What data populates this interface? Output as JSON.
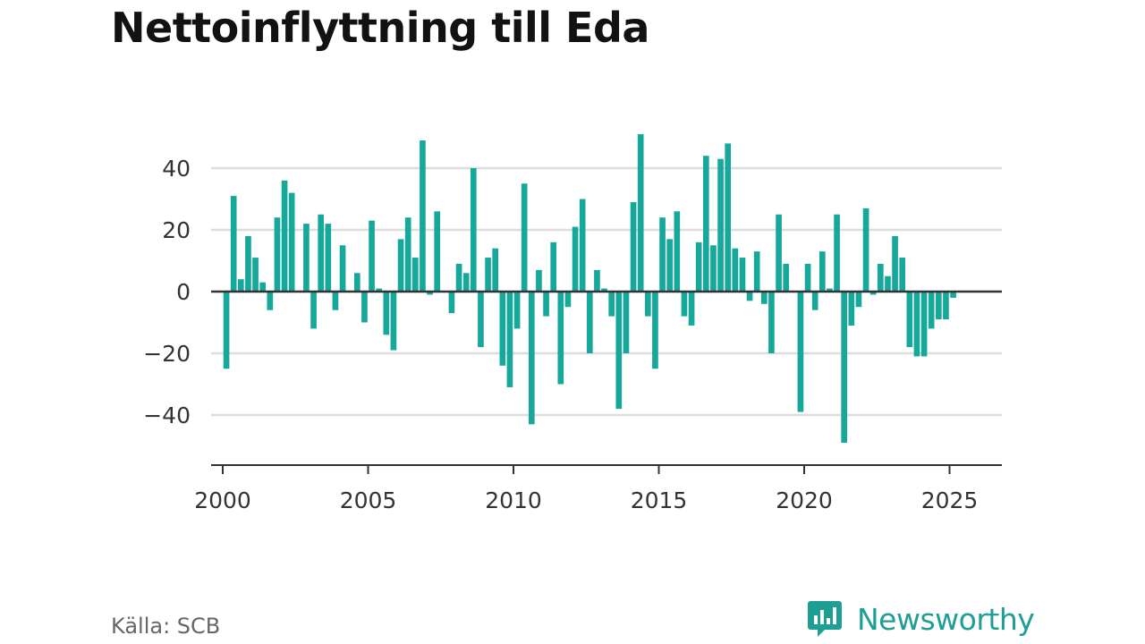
{
  "title": "Nettoinflyttning till Eda",
  "source": "Källa: SCB",
  "brand": {
    "name": "Newsworthy",
    "icon": "bar-chart-speech-bubble-icon",
    "color": "#1f9e93"
  },
  "colors": {
    "bar": "#15a89b",
    "grid": "#dddddd",
    "zero_line": "#333333",
    "axis": "#333333",
    "tick_text": "#333333"
  },
  "chart_data": {
    "type": "bar",
    "title": "Nettoinflyttning till Eda",
    "xlabel": "",
    "ylabel": "",
    "grid": true,
    "legend": "none",
    "frequency": "quarterly",
    "xlim": [
      1999.6,
      2026.8
    ],
    "ylim": [
      -55,
      55
    ],
    "x_ticks": [
      2000,
      2005,
      2010,
      2015,
      2020,
      2025
    ],
    "y_ticks": [
      40,
      20,
      0,
      -20,
      -40
    ],
    "tick_labels": {
      "x": [
        "2000",
        "2005",
        "2010",
        "2015",
        "2020",
        "2025"
      ],
      "y": [
        "40",
        "20",
        "0",
        "−20",
        "−40"
      ]
    },
    "start_quarter": "2000-Q1",
    "values": [
      -25,
      31,
      4,
      18,
      11,
      3,
      -6,
      24,
      36,
      32,
      0,
      22,
      -12,
      25,
      22,
      -6,
      15,
      0,
      6,
      -10,
      23,
      1,
      -14,
      -19,
      17,
      24,
      11,
      49,
      -1,
      26,
      0,
      -7,
      9,
      6,
      40,
      -18,
      11,
      14,
      -24,
      -31,
      -12,
      35,
      -43,
      7,
      -8,
      16,
      -30,
      -5,
      21,
      30,
      -20,
      7,
      1,
      -8,
      -38,
      -20,
      29,
      51,
      -8,
      -25,
      24,
      17,
      26,
      -8,
      -11,
      16,
      44,
      15,
      43,
      48,
      14,
      11,
      -3,
      13,
      -4,
      -20,
      25,
      9,
      0,
      -39,
      9,
      -6,
      13,
      1,
      25,
      -49,
      -11,
      -5,
      27,
      -1,
      9,
      5,
      18,
      11,
      -18,
      -21,
      -21,
      -12,
      -9,
      -9,
      -2
    ]
  }
}
